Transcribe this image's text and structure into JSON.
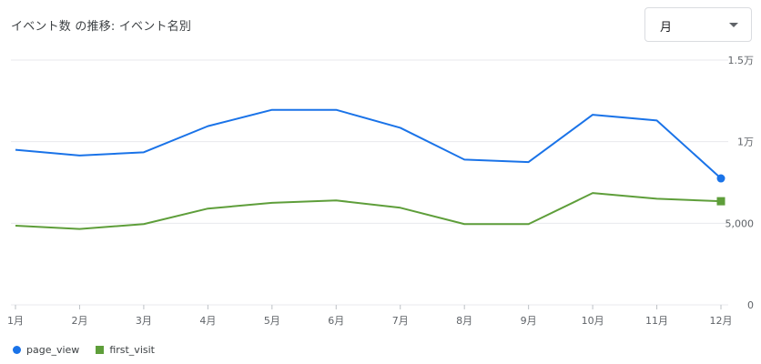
{
  "card": {
    "title": "イベント数 の推移: イベント名別"
  },
  "period_select": {
    "value": "月",
    "icon": "chevron-down-icon"
  },
  "colors": {
    "page_view": "#1a73e8",
    "first_visit": "#5e9e3a",
    "grid": "#e8eaed",
    "axis_text": "#5f6368"
  },
  "chart_data": {
    "type": "line",
    "categories": [
      "1月",
      "2月",
      "3月",
      "4月",
      "5月",
      "6月",
      "7月",
      "8月",
      "9月",
      "10月",
      "11月",
      "12月"
    ],
    "y_ticks": [
      {
        "value": 0,
        "label": "0"
      },
      {
        "value": 5000,
        "label": "5,000"
      },
      {
        "value": 10000,
        "label": "1万"
      },
      {
        "value": 15000,
        "label": "1.5万"
      }
    ],
    "ylim": [
      0,
      15000
    ],
    "grid": true,
    "legend_position": "bottom-left",
    "series": [
      {
        "name": "page_view",
        "marker": "circle",
        "values": [
          9500,
          9150,
          9350,
          10950,
          11950,
          11950,
          10850,
          8900,
          8750,
          11650,
          11300,
          7750
        ]
      },
      {
        "name": "first_visit",
        "marker": "square",
        "values": [
          4850,
          4650,
          4950,
          5900,
          6250,
          6400,
          5950,
          4950,
          4950,
          6850,
          6500,
          6350
        ]
      }
    ]
  }
}
